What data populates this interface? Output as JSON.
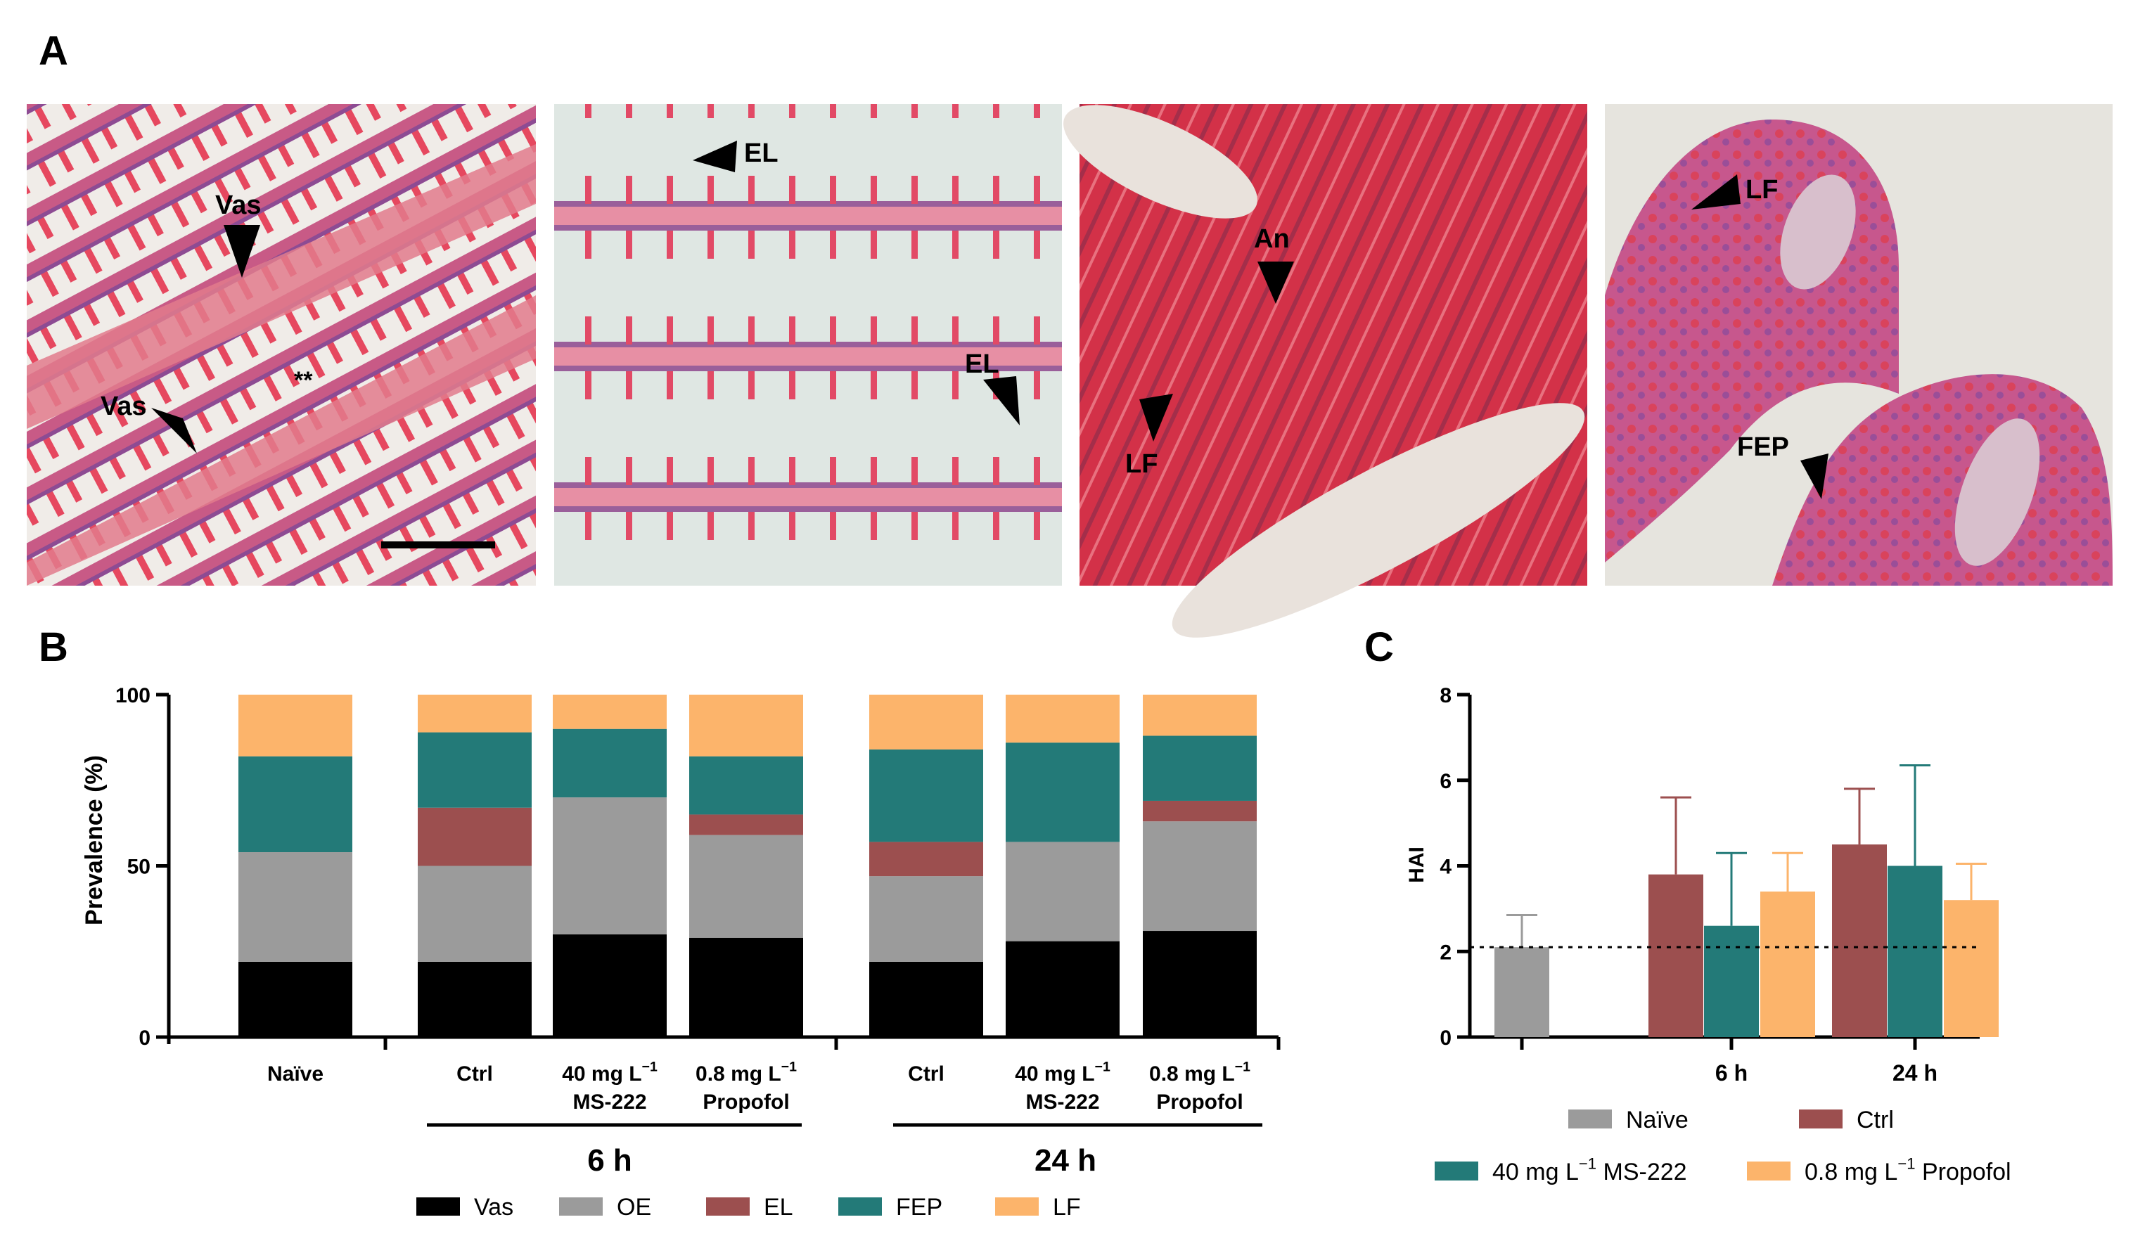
{
  "panel_letters": {
    "a": "A",
    "b": "B",
    "c": "C"
  },
  "colors": {
    "vas": "#000000",
    "oe": "#9b9b9b",
    "el": "#9c4f4f",
    "fep": "#237a78",
    "lf": "#fcb46b",
    "naive": "#9b9b9b",
    "ctrl": "#9c4f4f",
    "ms222": "#237a78",
    "propofol": "#fcb46b",
    "tissue_bg": "#eef0ec",
    "tissue_red": "#d63b56",
    "tissue_purple": "#8a4c8f"
  },
  "micrographs": [
    {
      "annotations": [
        {
          "text": "Vas",
          "kind": "arrow"
        },
        {
          "text": "Vas",
          "kind": "arrow"
        },
        {
          "text": "**",
          "kind": "marker"
        }
      ]
    },
    {
      "annotations": [
        {
          "text": "EL",
          "kind": "arrow"
        },
        {
          "text": "EL",
          "kind": "arrow"
        }
      ]
    },
    {
      "annotations": [
        {
          "text": "An",
          "kind": "arrow"
        },
        {
          "text": "LF",
          "kind": "arrow"
        }
      ]
    },
    {
      "annotations": [
        {
          "text": "LF",
          "kind": "arrow"
        },
        {
          "text": "FEP",
          "kind": "arrow"
        }
      ]
    }
  ],
  "chart_data": [
    {
      "id": "B",
      "type": "bar",
      "stacked": true,
      "ylabel": "Prevalence (%)",
      "ylim": [
        0,
        100
      ],
      "yticks": [
        0,
        50,
        100
      ],
      "categories": [
        {
          "line1": "Naïve",
          "line2": ""
        },
        {
          "line1": "Ctrl",
          "line2": ""
        },
        {
          "line1": "40 mg L",
          "sup": "−1",
          "line2": "MS-222"
        },
        {
          "line1": "0.8 mg L",
          "sup": "−1",
          "line2": "Propofol"
        },
        {
          "line1": "Ctrl",
          "line2": ""
        },
        {
          "line1": "40 mg L",
          "sup": "−1",
          "line2": "MS-222"
        },
        {
          "line1": "0.8 mg L",
          "sup": "−1",
          "line2": "Propofol"
        }
      ],
      "groups": [
        "6 h",
        "24 h"
      ],
      "series": [
        {
          "name": "Vas",
          "values": [
            22,
            22,
            30,
            29,
            22,
            28,
            31
          ]
        },
        {
          "name": "OE",
          "values": [
            32,
            28,
            40,
            30,
            25,
            29,
            32
          ]
        },
        {
          "name": "EL",
          "values": [
            0,
            17,
            0,
            6,
            10,
            0,
            6
          ]
        },
        {
          "name": "FEP",
          "values": [
            28,
            22,
            20,
            17,
            27,
            29,
            19
          ]
        },
        {
          "name": "LF",
          "values": [
            18,
            11,
            10,
            18,
            16,
            14,
            12
          ]
        }
      ],
      "legend": [
        {
          "name": "Vas",
          "suffix": ""
        },
        {
          "name": "OE",
          "suffix": ""
        },
        {
          "name": "EL",
          "suffix": ""
        },
        {
          "name": "FEP",
          "suffix": ""
        },
        {
          "name": "LF",
          "suffix": ""
        }
      ]
    },
    {
      "id": "C",
      "type": "bar",
      "ylabel": "HAI",
      "ylim": [
        0,
        8
      ],
      "yticks": [
        0,
        2,
        4,
        6,
        8
      ],
      "xticks": [
        "6 h",
        "24 h"
      ],
      "reference_line": 2.1,
      "bars": [
        {
          "series": "Naïve",
          "group": "",
          "value": 2.1,
          "err": 0.75
        },
        {
          "series": "Ctrl",
          "group": "6 h",
          "value": 3.8,
          "err": 1.8
        },
        {
          "series": "40 mg L-1 MS-222",
          "group": "6 h",
          "value": 2.6,
          "err": 1.7
        },
        {
          "series": "0.8 mg L-1 Propofol",
          "group": "6 h",
          "value": 3.4,
          "err": 0.9
        },
        {
          "series": "Ctrl",
          "group": "24 h",
          "value": 4.5,
          "err": 1.3
        },
        {
          "series": "40 mg L-1 MS-222",
          "group": "24 h",
          "value": 4.0,
          "err": 2.35
        },
        {
          "series": "0.8 mg L-1 Propofol",
          "group": "24 h",
          "value": 3.2,
          "err": 0.85
        }
      ],
      "legend": [
        {
          "name": "Naïve",
          "sup": "",
          "suffix": ""
        },
        {
          "name": "Ctrl",
          "sup": "",
          "suffix": ""
        },
        {
          "name": "40 mg L",
          "sup": "−1",
          "suffix": " MS-222"
        },
        {
          "name": "0.8 mg L",
          "sup": "−1",
          "suffix": " Propofol"
        }
      ]
    }
  ]
}
